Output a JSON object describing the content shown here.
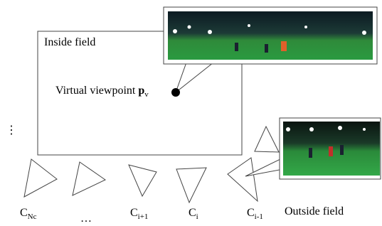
{
  "regions": {
    "inside": "Inside field",
    "outside": "Outside field"
  },
  "viewpoint": {
    "label": "Virtual viewpoint",
    "symbol": "p",
    "subscript": "v"
  },
  "ellipsis": "⋮",
  "cameras": [
    {
      "label": "C",
      "subscript": "Nc"
    },
    {
      "label": "…"
    },
    {
      "label": "C",
      "subscript": "i+1"
    },
    {
      "label": "C",
      "subscript": "i"
    },
    {
      "label": "C",
      "subscript": "i-1"
    }
  ]
}
